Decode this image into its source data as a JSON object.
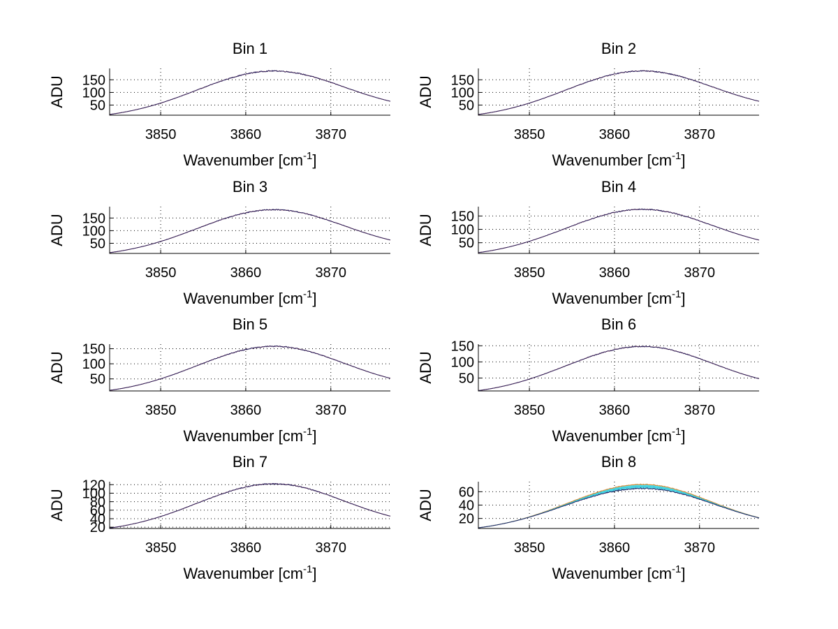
{
  "chart_data": [
    {
      "type": "line",
      "title": "Bin 1",
      "xlabel": "Wavenumber [cm",
      "xlabel_sup": "-1",
      "xlabel_end": "]",
      "ylabel": "ADU",
      "xlim": [
        3844,
        3877
      ],
      "ylim": [
        10,
        195
      ],
      "xticks": [
        3850,
        3860,
        3870
      ],
      "xtick_labels": [
        "3850",
        "3860",
        "3870"
      ],
      "yticks": [
        50,
        100,
        150
      ],
      "ytick_labels": [
        "50",
        "100",
        "150"
      ],
      "grid": true,
      "curve": {
        "start": 13,
        "peak": 185,
        "end": 65
      },
      "series": [
        {
          "name": "red",
          "color": "#e03020"
        },
        {
          "name": "blue",
          "color": "#202060"
        }
      ]
    },
    {
      "type": "line",
      "title": "Bin 2",
      "xlabel": "Wavenumber [cm",
      "xlabel_sup": "-1",
      "xlabel_end": "]",
      "ylabel": "ADU",
      "xlim": [
        3844,
        3877
      ],
      "ylim": [
        10,
        195
      ],
      "xticks": [
        3850,
        3860,
        3870
      ],
      "xtick_labels": [
        "3850",
        "3860",
        "3870"
      ],
      "yticks": [
        50,
        100,
        150
      ],
      "ytick_labels": [
        "50",
        "100",
        "150"
      ],
      "grid": true,
      "curve": {
        "start": 13,
        "peak": 185,
        "end": 65
      },
      "series": [
        {
          "name": "red",
          "color": "#e03020"
        },
        {
          "name": "blue",
          "color": "#202060"
        }
      ]
    },
    {
      "type": "line",
      "title": "Bin 3",
      "xlabel": "Wavenumber [cm",
      "xlabel_sup": "-1",
      "xlabel_end": "]",
      "ylabel": "ADU",
      "xlim": [
        3844,
        3877
      ],
      "ylim": [
        10,
        195
      ],
      "xticks": [
        3850,
        3860,
        3870
      ],
      "xtick_labels": [
        "3850",
        "3860",
        "3870"
      ],
      "yticks": [
        50,
        100,
        150
      ],
      "ytick_labels": [
        "50",
        "100",
        "150"
      ],
      "grid": true,
      "curve": {
        "start": 13,
        "peak": 183,
        "end": 63
      },
      "series": [
        {
          "name": "red",
          "color": "#e03020"
        },
        {
          "name": "blue",
          "color": "#202060"
        }
      ]
    },
    {
      "type": "line",
      "title": "Bin 4",
      "xlabel": "Wavenumber [cm",
      "xlabel_sup": "-1",
      "xlabel_end": "]",
      "ylabel": "ADU",
      "xlim": [
        3844,
        3877
      ],
      "ylim": [
        10,
        185
      ],
      "xticks": [
        3850,
        3860,
        3870
      ],
      "xtick_labels": [
        "3850",
        "3860",
        "3870"
      ],
      "yticks": [
        50,
        100,
        150
      ],
      "ytick_labels": [
        "50",
        "100",
        "150"
      ],
      "grid": true,
      "curve": {
        "start": 13,
        "peak": 175,
        "end": 60
      },
      "series": [
        {
          "name": "red",
          "color": "#e03020"
        },
        {
          "name": "blue",
          "color": "#202060"
        }
      ]
    },
    {
      "type": "line",
      "title": "Bin 5",
      "xlabel": "Wavenumber [cm",
      "xlabel_sup": "-1",
      "xlabel_end": "]",
      "ylabel": "ADU",
      "xlim": [
        3844,
        3877
      ],
      "ylim": [
        10,
        165
      ],
      "xticks": [
        3850,
        3860,
        3870
      ],
      "xtick_labels": [
        "3850",
        "3860",
        "3870"
      ],
      "yticks": [
        50,
        100,
        150
      ],
      "ytick_labels": [
        "50",
        "100",
        "150"
      ],
      "grid": true,
      "curve": {
        "start": 12,
        "peak": 158,
        "end": 52
      },
      "series": [
        {
          "name": "red",
          "color": "#e03020"
        },
        {
          "name": "blue",
          "color": "#202060"
        }
      ]
    },
    {
      "type": "line",
      "title": "Bin 6",
      "xlabel": "Wavenumber [cm",
      "xlabel_sup": "-1",
      "xlabel_end": "]",
      "ylabel": "ADU",
      "xlim": [
        3844,
        3877
      ],
      "ylim": [
        10,
        155
      ],
      "xticks": [
        3850,
        3860,
        3870
      ],
      "xtick_labels": [
        "3850",
        "3860",
        "3870"
      ],
      "yticks": [
        50,
        100,
        150
      ],
      "ytick_labels": [
        "50",
        "100",
        "150"
      ],
      "grid": true,
      "curve": {
        "start": 11,
        "peak": 148,
        "end": 48
      },
      "series": [
        {
          "name": "red",
          "color": "#e03020"
        },
        {
          "name": "blue",
          "color": "#202060"
        }
      ]
    },
    {
      "type": "line",
      "title": "Bin 7",
      "xlabel": "Wavenumber [cm",
      "xlabel_sup": "-1",
      "xlabel_end": "]",
      "ylabel": "ADU",
      "xlim": [
        3844,
        3877
      ],
      "ylim": [
        17,
        127
      ],
      "xticks": [
        3850,
        3860,
        3870
      ],
      "xtick_labels": [
        "3850",
        "3860",
        "3870"
      ],
      "yticks": [
        20,
        40,
        60,
        80,
        100,
        120
      ],
      "ytick_labels": [
        "20",
        "40",
        "60",
        "80",
        "100",
        "120"
      ],
      "grid": true,
      "curve": {
        "start": 18,
        "peak": 122,
        "end": 46
      },
      "series": [
        {
          "name": "red",
          "color": "#e03020"
        },
        {
          "name": "blue",
          "color": "#202060"
        }
      ]
    },
    {
      "type": "line",
      "title": "Bin 8",
      "xlabel": "Wavenumber [cm",
      "xlabel_sup": "-1",
      "xlabel_end": "]",
      "ylabel": "ADU",
      "xlim": [
        3844,
        3877
      ],
      "ylim": [
        5,
        75
      ],
      "xticks": [
        3850,
        3860,
        3870
      ],
      "xtick_labels": [
        "3850",
        "3860",
        "3870"
      ],
      "yticks": [
        20,
        40,
        60
      ],
      "ytick_labels": [
        "20",
        "40",
        "60"
      ],
      "grid": true,
      "curve": {
        "start": 6,
        "peak": 68,
        "end": 21
      },
      "band": {
        "color": "#40d8e8",
        "width": 7
      },
      "series": [
        {
          "name": "orange",
          "color": "#e08020"
        },
        {
          "name": "cyan",
          "color": "#30c8d8"
        },
        {
          "name": "blue",
          "color": "#202060"
        }
      ]
    }
  ]
}
